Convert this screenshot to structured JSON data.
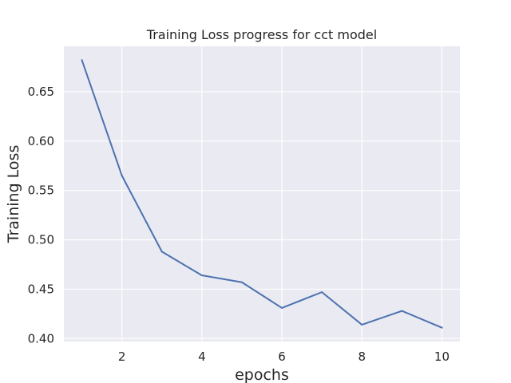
{
  "chart_data": {
    "type": "line",
    "title": "Training Loss progress for cct model",
    "xlabel": "epochs",
    "ylabel": "Training Loss",
    "x": [
      1,
      2,
      3,
      4,
      5,
      6,
      7,
      8,
      9,
      10
    ],
    "series": [
      {
        "values": [
          0.682,
          0.565,
          0.488,
          0.464,
          0.457,
          0.431,
          0.447,
          0.414,
          0.428,
          0.411
        ]
      }
    ],
    "xlim": [
      0.55,
      10.45
    ],
    "ylim": [
      0.397,
      0.696
    ],
    "xticks": [
      2,
      4,
      6,
      8,
      10
    ],
    "yticks": [
      0.4,
      0.45,
      0.5,
      0.55,
      0.6,
      0.65
    ],
    "ytick_labels": [
      "0.40",
      "0.45",
      "0.50",
      "0.55",
      "0.60",
      "0.65"
    ],
    "grid": true,
    "style": {
      "plot_background": "#eaeaf2",
      "grid_color": "#ffffff",
      "line_color": "#4c72b0",
      "text_color": "#262626"
    }
  }
}
